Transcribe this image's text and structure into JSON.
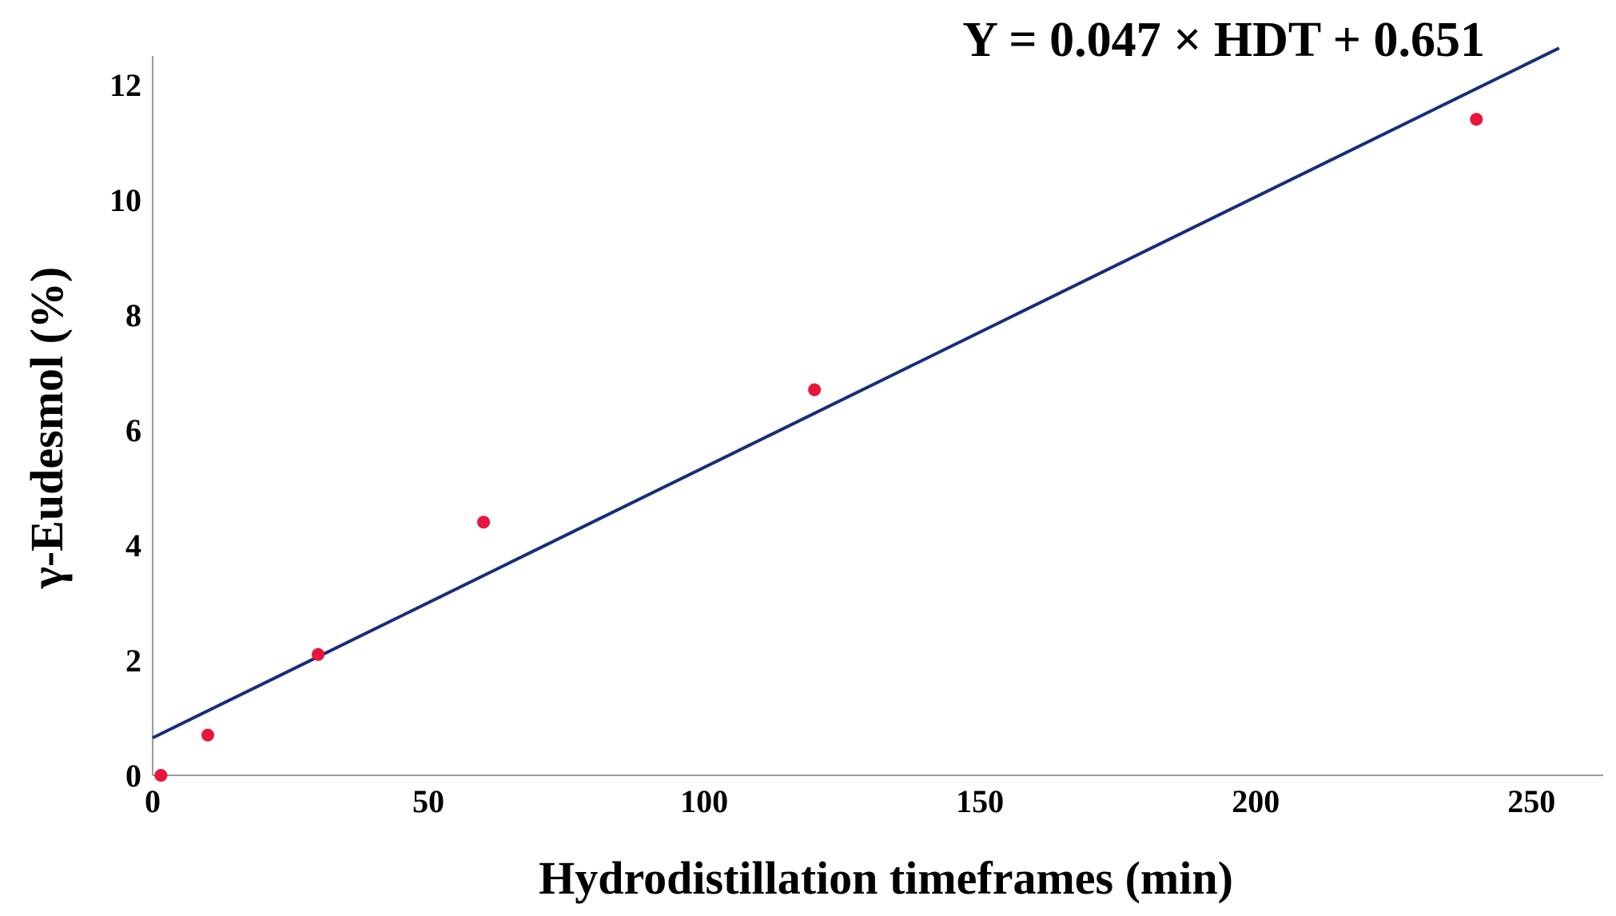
{
  "chart_data": {
    "type": "scatter",
    "title": "",
    "xlabel": "Hydrodistillation timeframes (min)",
    "ylabel": "γ-Eudesmol (%)",
    "xlim": [
      0,
      263
    ],
    "ylim": [
      0,
      12.5
    ],
    "x_ticks": [
      0,
      50,
      100,
      150,
      200,
      250
    ],
    "y_ticks": [
      0,
      2,
      4,
      6,
      8,
      10,
      12
    ],
    "grid": false,
    "series": [
      {
        "type": "scatter",
        "color": "#e8163c",
        "x": [
          1.5,
          10,
          30,
          60,
          120,
          240
        ],
        "y": [
          0.0,
          0.7,
          2.1,
          4.4,
          6.7,
          11.4
        ]
      }
    ],
    "fit_line": {
      "slope": 0.047,
      "intercept": 0.651,
      "color": "#1a2d7a",
      "x_range": [
        0,
        255
      ],
      "equation": "Y = 0.047 × HDT + 0.651"
    }
  }
}
